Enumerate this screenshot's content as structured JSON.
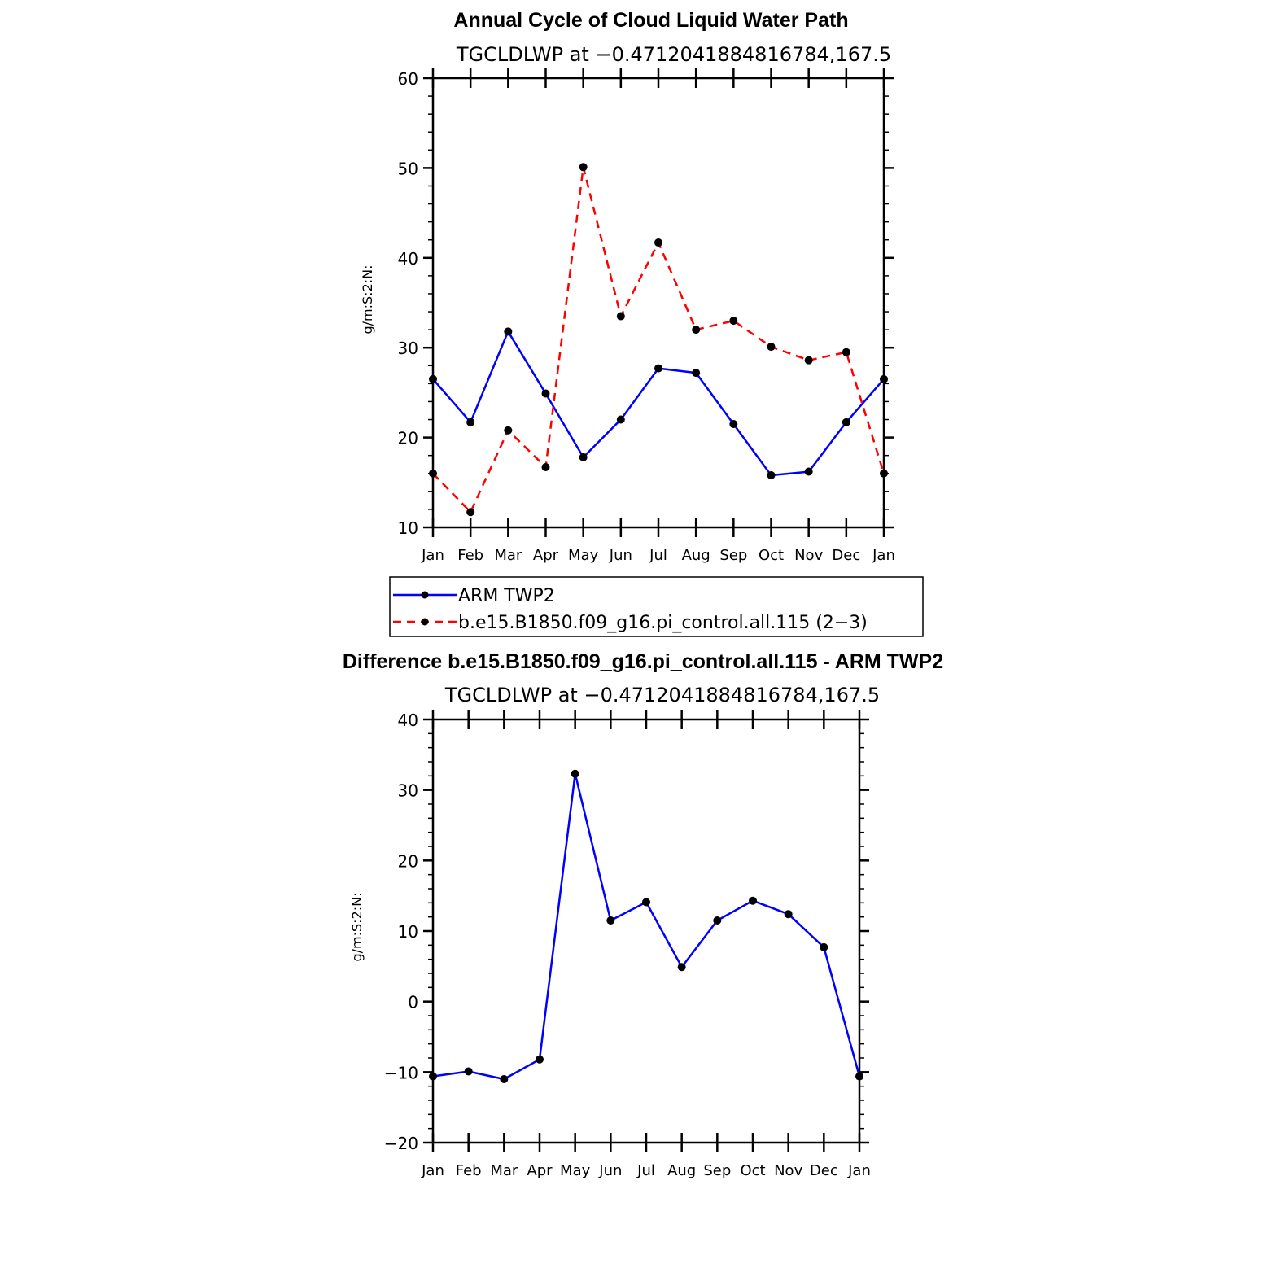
{
  "chart_data": [
    {
      "type": "line",
      "title": "Annual Cycle of Cloud Liquid Water Path",
      "subtitle": "TGCLDLWP at −0.4712041884816784,167.5",
      "ylabel": "g/m:S:2:N:",
      "xlabel": "",
      "categories": [
        "Jan",
        "Feb",
        "Mar",
        "Apr",
        "May",
        "Jun",
        "Jul",
        "Aug",
        "Sep",
        "Oct",
        "Nov",
        "Dec",
        "Jan"
      ],
      "ylim": [
        10,
        60
      ],
      "yticks": [
        "10",
        "20",
        "30",
        "40",
        "50",
        "60"
      ],
      "series": [
        {
          "name": "ARM TWP2",
          "color": "#0000ff",
          "dash": "solid",
          "values": [
            26.5,
            21.7,
            31.8,
            24.9,
            17.8,
            22.0,
            27.7,
            27.2,
            21.5,
            15.8,
            16.2,
            21.7,
            26.5
          ]
        },
        {
          "name": "b.e15.B1850.f09_g16.pi_control.all.115 (2−3)",
          "color": "#ff0000",
          "dash": "dashed",
          "values": [
            16.0,
            11.7,
            20.8,
            16.7,
            50.1,
            33.5,
            41.7,
            32.0,
            33.0,
            30.1,
            28.6,
            29.5,
            16.0
          ]
        }
      ],
      "legend_position": "bottom"
    },
    {
      "type": "line",
      "title": "Difference b.e15.B1850.f09_g16.pi_control.all.115 - ARM TWP2",
      "subtitle": "TGCLDLWP at −0.4712041884816784,167.5",
      "ylabel": "g/m:S:2:N:",
      "xlabel": "",
      "categories": [
        "Jan",
        "Feb",
        "Mar",
        "Apr",
        "May",
        "Jun",
        "Jul",
        "Aug",
        "Sep",
        "Oct",
        "Nov",
        "Dec",
        "Jan"
      ],
      "ylim": [
        -20,
        40
      ],
      "yticks": [
        "−20",
        "−10",
        "0",
        "10",
        "20",
        "30",
        "40"
      ],
      "series": [
        {
          "name": "Difference",
          "color": "#0000ff",
          "dash": "solid",
          "values": [
            -10.6,
            -9.9,
            -11.0,
            -8.2,
            32.3,
            11.5,
            14.1,
            4.9,
            11.5,
            14.3,
            12.4,
            7.7,
            -10.6
          ]
        }
      ]
    }
  ]
}
